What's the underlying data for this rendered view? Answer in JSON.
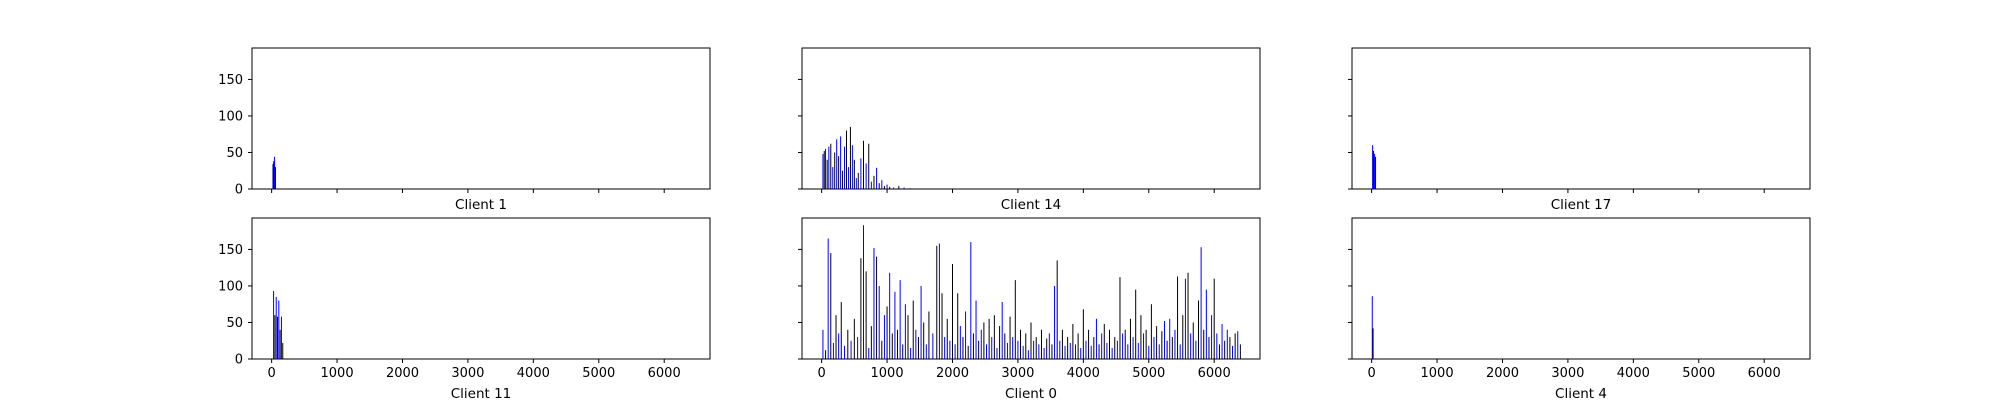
{
  "chart_data": {
    "type": "bar",
    "shared_xlim": [
      -300,
      6700
    ],
    "shared_ylim": [
      0,
      193
    ],
    "x_ticks": [
      0,
      1000,
      2000,
      3000,
      4000,
      5000,
      6000
    ],
    "y_ticks": [
      0,
      50,
      100,
      150
    ],
    "colors": [
      "#0000ff",
      "#000000"
    ],
    "grid": false,
    "legend": "none",
    "subplots": [
      {
        "label": "Client 1",
        "bars": [
          {
            "x": 20,
            "value": 34
          },
          {
            "x": 32,
            "value": 38
          },
          {
            "x": 45,
            "value": 44
          },
          {
            "x": 58,
            "value": 30
          }
        ]
      },
      {
        "label": "Client 14",
        "bars": [
          {
            "x": 20,
            "value": 48
          },
          {
            "x": 40,
            "value": 52
          },
          {
            "x": 60,
            "value": 55
          },
          {
            "x": 85,
            "value": 40
          },
          {
            "x": 110,
            "value": 58
          },
          {
            "x": 140,
            "value": 62
          },
          {
            "x": 170,
            "value": 30
          },
          {
            "x": 200,
            "value": 50
          },
          {
            "x": 230,
            "value": 68
          },
          {
            "x": 260,
            "value": 45
          },
          {
            "x": 290,
            "value": 72
          },
          {
            "x": 320,
            "value": 25
          },
          {
            "x": 350,
            "value": 58
          },
          {
            "x": 380,
            "value": 80
          },
          {
            "x": 410,
            "value": 30
          },
          {
            "x": 440,
            "value": 85
          },
          {
            "x": 470,
            "value": 60
          },
          {
            "x": 500,
            "value": 40
          },
          {
            "x": 530,
            "value": 15
          },
          {
            "x": 560,
            "value": 22
          },
          {
            "x": 600,
            "value": 42
          },
          {
            "x": 640,
            "value": 66
          },
          {
            "x": 680,
            "value": 35
          },
          {
            "x": 720,
            "value": 62
          },
          {
            "x": 760,
            "value": 10
          },
          {
            "x": 800,
            "value": 18
          },
          {
            "x": 840,
            "value": 29
          },
          {
            "x": 880,
            "value": 8
          },
          {
            "x": 920,
            "value": 12
          },
          {
            "x": 960,
            "value": 4
          },
          {
            "x": 1000,
            "value": 6
          },
          {
            "x": 1040,
            "value": 3
          },
          {
            "x": 1100,
            "value": 2
          },
          {
            "x": 1180,
            "value": 4
          },
          {
            "x": 1260,
            "value": 2
          },
          {
            "x": 1350,
            "value": 1
          }
        ]
      },
      {
        "label": "Client 17",
        "bars": [
          {
            "x": 15,
            "value": 60
          },
          {
            "x": 30,
            "value": 52
          },
          {
            "x": 45,
            "value": 48
          },
          {
            "x": 60,
            "value": 44
          }
        ]
      },
      {
        "label": "Client 11",
        "bars": [
          {
            "x": 30,
            "value": 93
          },
          {
            "x": 50,
            "value": 60
          },
          {
            "x": 70,
            "value": 85
          },
          {
            "x": 90,
            "value": 58
          },
          {
            "x": 110,
            "value": 80
          },
          {
            "x": 130,
            "value": 40
          },
          {
            "x": 150,
            "value": 58
          },
          {
            "x": 170,
            "value": 22
          }
        ]
      },
      {
        "label": "Client 0",
        "bars": [
          {
            "x": 20,
            "value": 40
          },
          {
            "x": 60,
            "value": 12
          },
          {
            "x": 100,
            "value": 165
          },
          {
            "x": 140,
            "value": 145
          },
          {
            "x": 180,
            "value": 22
          },
          {
            "x": 220,
            "value": 60
          },
          {
            "x": 260,
            "value": 35
          },
          {
            "x": 300,
            "value": 78
          },
          {
            "x": 350,
            "value": 18
          },
          {
            "x": 400,
            "value": 40
          },
          {
            "x": 450,
            "value": 25
          },
          {
            "x": 500,
            "value": 55
          },
          {
            "x": 550,
            "value": 30
          },
          {
            "x": 600,
            "value": 138
          },
          {
            "x": 640,
            "value": 183
          },
          {
            "x": 680,
            "value": 120
          },
          {
            "x": 720,
            "value": 15
          },
          {
            "x": 760,
            "value": 45
          },
          {
            "x": 800,
            "value": 152
          },
          {
            "x": 840,
            "value": 140
          },
          {
            "x": 880,
            "value": 100
          },
          {
            "x": 920,
            "value": 25
          },
          {
            "x": 960,
            "value": 60
          },
          {
            "x": 1000,
            "value": 72
          },
          {
            "x": 1040,
            "value": 118
          },
          {
            "x": 1080,
            "value": 35
          },
          {
            "x": 1120,
            "value": 92
          },
          {
            "x": 1160,
            "value": 40
          },
          {
            "x": 1200,
            "value": 108
          },
          {
            "x": 1240,
            "value": 20
          },
          {
            "x": 1280,
            "value": 75
          },
          {
            "x": 1320,
            "value": 60
          },
          {
            "x": 1360,
            "value": 15
          },
          {
            "x": 1400,
            "value": 80
          },
          {
            "x": 1440,
            "value": 40
          },
          {
            "x": 1480,
            "value": 30
          },
          {
            "x": 1520,
            "value": 100
          },
          {
            "x": 1560,
            "value": 50
          },
          {
            "x": 1600,
            "value": 20
          },
          {
            "x": 1640,
            "value": 65
          },
          {
            "x": 1700,
            "value": 35
          },
          {
            "x": 1760,
            "value": 155
          },
          {
            "x": 1800,
            "value": 158
          },
          {
            "x": 1840,
            "value": 90
          },
          {
            "x": 1880,
            "value": 30
          },
          {
            "x": 1920,
            "value": 55
          },
          {
            "x": 1960,
            "value": 25
          },
          {
            "x": 2000,
            "value": 130
          },
          {
            "x": 2040,
            "value": 20
          },
          {
            "x": 2080,
            "value": 90
          },
          {
            "x": 2120,
            "value": 45
          },
          {
            "x": 2160,
            "value": 30
          },
          {
            "x": 2200,
            "value": 65
          },
          {
            "x": 2240,
            "value": 18
          },
          {
            "x": 2280,
            "value": 160
          },
          {
            "x": 2320,
            "value": 35
          },
          {
            "x": 2360,
            "value": 80
          },
          {
            "x": 2400,
            "value": 25
          },
          {
            "x": 2440,
            "value": 40
          },
          {
            "x": 2480,
            "value": 50
          },
          {
            "x": 2520,
            "value": 20
          },
          {
            "x": 2560,
            "value": 55
          },
          {
            "x": 2600,
            "value": 30
          },
          {
            "x": 2640,
            "value": 60
          },
          {
            "x": 2680,
            "value": 15
          },
          {
            "x": 2720,
            "value": 45
          },
          {
            "x": 2760,
            "value": 78
          },
          {
            "x": 2800,
            "value": 35
          },
          {
            "x": 2840,
            "value": 22
          },
          {
            "x": 2880,
            "value": 58
          },
          {
            "x": 2920,
            "value": 30
          },
          {
            "x": 2960,
            "value": 108
          },
          {
            "x": 3000,
            "value": 25
          },
          {
            "x": 3040,
            "value": 40
          },
          {
            "x": 3080,
            "value": 18
          },
          {
            "x": 3120,
            "value": 35
          },
          {
            "x": 3160,
            "value": 12
          },
          {
            "x": 3200,
            "value": 50
          },
          {
            "x": 3240,
            "value": 25
          },
          {
            "x": 3280,
            "value": 30
          },
          {
            "x": 3320,
            "value": 20
          },
          {
            "x": 3360,
            "value": 40
          },
          {
            "x": 3400,
            "value": 15
          },
          {
            "x": 3440,
            "value": 28
          },
          {
            "x": 3480,
            "value": 35
          },
          {
            "x": 3520,
            "value": 20
          },
          {
            "x": 3560,
            "value": 100
          },
          {
            "x": 3600,
            "value": 135
          },
          {
            "x": 3640,
            "value": 25
          },
          {
            "x": 3680,
            "value": 40
          },
          {
            "x": 3720,
            "value": 18
          },
          {
            "x": 3760,
            "value": 30
          },
          {
            "x": 3800,
            "value": 22
          },
          {
            "x": 3840,
            "value": 48
          },
          {
            "x": 3880,
            "value": 20
          },
          {
            "x": 3920,
            "value": 35
          },
          {
            "x": 3960,
            "value": 15
          },
          {
            "x": 4000,
            "value": 68
          },
          {
            "x": 4040,
            "value": 25
          },
          {
            "x": 4080,
            "value": 40
          },
          {
            "x": 4120,
            "value": 18
          },
          {
            "x": 4160,
            "value": 30
          },
          {
            "x": 4200,
            "value": 55
          },
          {
            "x": 4240,
            "value": 20
          },
          {
            "x": 4280,
            "value": 35
          },
          {
            "x": 4320,
            "value": 48
          },
          {
            "x": 4360,
            "value": 22
          },
          {
            "x": 4400,
            "value": 40
          },
          {
            "x": 4440,
            "value": 15
          },
          {
            "x": 4480,
            "value": 30
          },
          {
            "x": 4520,
            "value": 25
          },
          {
            "x": 4560,
            "value": 112
          },
          {
            "x": 4600,
            "value": 35
          },
          {
            "x": 4640,
            "value": 40
          },
          {
            "x": 4680,
            "value": 20
          },
          {
            "x": 4720,
            "value": 55
          },
          {
            "x": 4760,
            "value": 30
          },
          {
            "x": 4800,
            "value": 95
          },
          {
            "x": 4840,
            "value": 22
          },
          {
            "x": 4880,
            "value": 60
          },
          {
            "x": 4920,
            "value": 35
          },
          {
            "x": 4960,
            "value": 40
          },
          {
            "x": 5000,
            "value": 18
          },
          {
            "x": 5040,
            "value": 75
          },
          {
            "x": 5080,
            "value": 30
          },
          {
            "x": 5120,
            "value": 45
          },
          {
            "x": 5160,
            "value": 20
          },
          {
            "x": 5200,
            "value": 38
          },
          {
            "x": 5240,
            "value": 52
          },
          {
            "x": 5280,
            "value": 25
          },
          {
            "x": 5320,
            "value": 55
          },
          {
            "x": 5360,
            "value": 30
          },
          {
            "x": 5400,
            "value": 40
          },
          {
            "x": 5440,
            "value": 113
          },
          {
            "x": 5480,
            "value": 20
          },
          {
            "x": 5520,
            "value": 60
          },
          {
            "x": 5560,
            "value": 110
          },
          {
            "x": 5600,
            "value": 118
          },
          {
            "x": 5640,
            "value": 35
          },
          {
            "x": 5680,
            "value": 50
          },
          {
            "x": 5720,
            "value": 25
          },
          {
            "x": 5760,
            "value": 80
          },
          {
            "x": 5800,
            "value": 153
          },
          {
            "x": 5840,
            "value": 40
          },
          {
            "x": 5880,
            "value": 95
          },
          {
            "x": 5920,
            "value": 30
          },
          {
            "x": 5960,
            "value": 60
          },
          {
            "x": 6000,
            "value": 110
          },
          {
            "x": 6040,
            "value": 35
          },
          {
            "x": 6080,
            "value": 20
          },
          {
            "x": 6120,
            "value": 48
          },
          {
            "x": 6160,
            "value": 25
          },
          {
            "x": 6200,
            "value": 40
          },
          {
            "x": 6240,
            "value": 30
          },
          {
            "x": 6280,
            "value": 18
          },
          {
            "x": 6320,
            "value": 35
          },
          {
            "x": 6360,
            "value": 38
          },
          {
            "x": 6400,
            "value": 20
          }
        ]
      },
      {
        "label": "Client 4",
        "bars": [
          {
            "x": 10,
            "value": 86
          },
          {
            "x": 22,
            "value": 42
          }
        ]
      }
    ]
  }
}
